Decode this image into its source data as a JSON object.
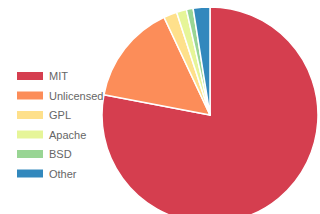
{
  "chart_data": {
    "type": "pie",
    "categories": [
      "MIT",
      "Unlicensed",
      "GPL",
      "Apache",
      "BSD",
      "Other"
    ],
    "values": [
      78,
      15,
      2,
      1.5,
      1,
      2.5
    ],
    "colors": [
      "#d53e4f",
      "#fc8d59",
      "#fee08b",
      "#e6f598",
      "#99d594",
      "#3288bd"
    ],
    "legend": "left"
  }
}
